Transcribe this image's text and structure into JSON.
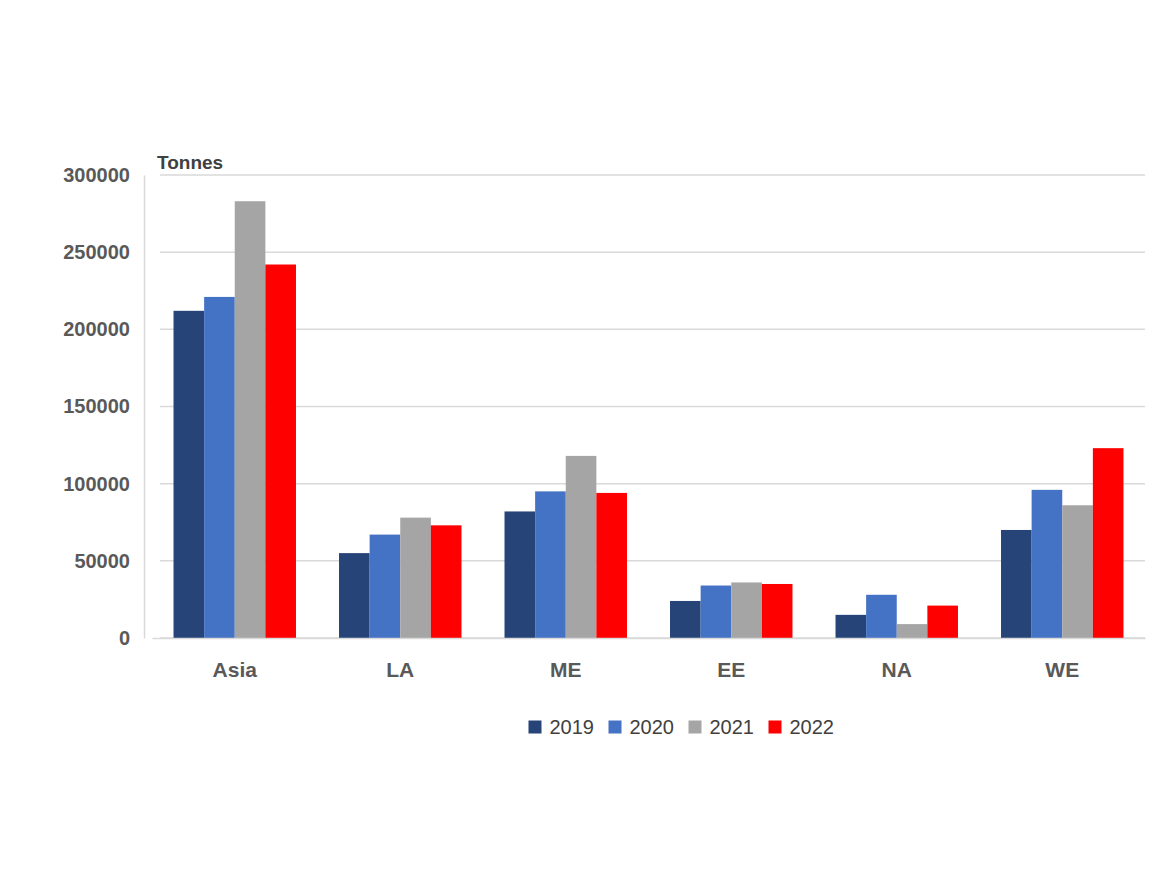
{
  "chart_data": {
    "type": "bar",
    "y_label": "Tonnes",
    "categories": [
      "Asia",
      "LA",
      "ME",
      "EE",
      "NA",
      "WE"
    ],
    "series": [
      {
        "name": "2019",
        "color": "#264478",
        "values": [
          212000,
          55000,
          82000,
          24000,
          15000,
          70000
        ]
      },
      {
        "name": "2020",
        "color": "#4472c4",
        "values": [
          221000,
          67000,
          95000,
          34000,
          28000,
          96000
        ]
      },
      {
        "name": "2021",
        "color": "#a5a5a5",
        "values": [
          283000,
          78000,
          118000,
          36000,
          9000,
          86000
        ]
      },
      {
        "name": "2022",
        "color": "#ff0000",
        "values": [
          242000,
          73000,
          94000,
          35000,
          21000,
          123000
        ]
      }
    ],
    "ylim": [
      0,
      300000
    ],
    "yticks": [
      0,
      50000,
      100000,
      150000,
      200000,
      250000,
      300000
    ],
    "grid": true,
    "legend": "bottom"
  }
}
